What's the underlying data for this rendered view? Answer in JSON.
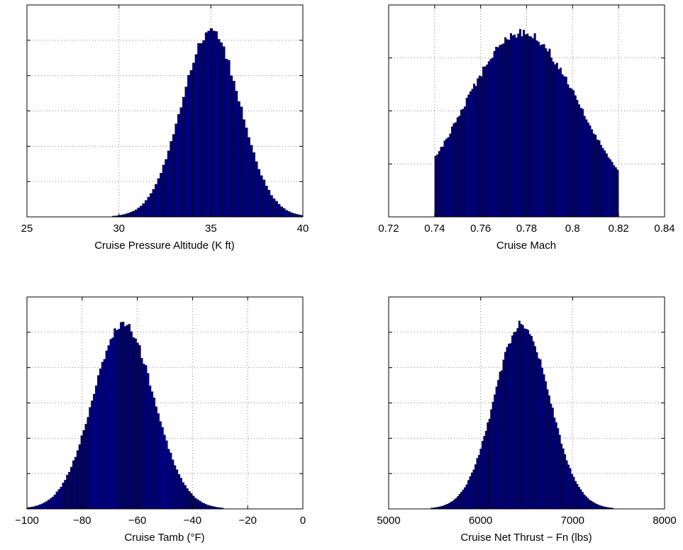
{
  "chart_data": [
    {
      "type": "bar",
      "xlabel": "Cruise Pressure Altitude (K ft)",
      "ylabel": "",
      "xlim": [
        25,
        40
      ],
      "xticks": [
        25,
        30,
        35,
        40
      ],
      "xtick_labels": [
        "25",
        "30",
        "35",
        "40"
      ],
      "grid": true,
      "yticks_visible": false,
      "distribution": {
        "kind": "normal",
        "center": 35,
        "spread": 1.6,
        "range": [
          25,
          40
        ]
      },
      "bin_count": 110,
      "bar_color": "#00007f"
    },
    {
      "type": "bar",
      "xlabel": "Cruise Mach",
      "ylabel": "",
      "xlim": [
        0.72,
        0.84
      ],
      "xticks": [
        0.72,
        0.74,
        0.76,
        0.78,
        0.8,
        0.82,
        0.84
      ],
      "xtick_labels": [
        "0.72",
        "0.74",
        "0.76",
        "0.78",
        "0.8",
        "0.82",
        "0.84"
      ],
      "grid": true,
      "yticks_visible": false,
      "distribution": {
        "kind": "truncated-normal",
        "center": 0.778,
        "spread": 0.025,
        "range": [
          0.74,
          0.82
        ]
      },
      "bin_count": 100,
      "bar_color": "#00007f"
    },
    {
      "type": "bar",
      "xlabel": "Cruise Tamb (°F)",
      "ylabel": "",
      "xlim": [
        -100,
        0
      ],
      "xticks": [
        -100,
        -80,
        -60,
        -40,
        -20,
        0
      ],
      "xtick_labels": [
        "−100",
        "−80",
        "−60",
        "−40",
        "−20",
        "0"
      ],
      "grid": true,
      "yticks_visible": false,
      "distribution": {
        "kind": "normal",
        "center": -65,
        "spread": 11,
        "range": [
          -100,
          -25
        ]
      },
      "bin_count": 100,
      "bar_color": "#00007f"
    },
    {
      "type": "bar",
      "xlabel": "Cruise Net Thrust − Fn (lbs)",
      "ylabel": "",
      "xlim": [
        5000,
        8000
      ],
      "xticks": [
        5000,
        6000,
        7000,
        8000
      ],
      "xtick_labels": [
        "5000",
        "6000",
        "7000",
        "8000"
      ],
      "grid": true,
      "yticks_visible": false,
      "distribution": {
        "kind": "normal",
        "center": 6450,
        "spread": 300,
        "range": [
          5400,
          7500
        ]
      },
      "bin_count": 110,
      "bar_color": "#00007f"
    }
  ]
}
